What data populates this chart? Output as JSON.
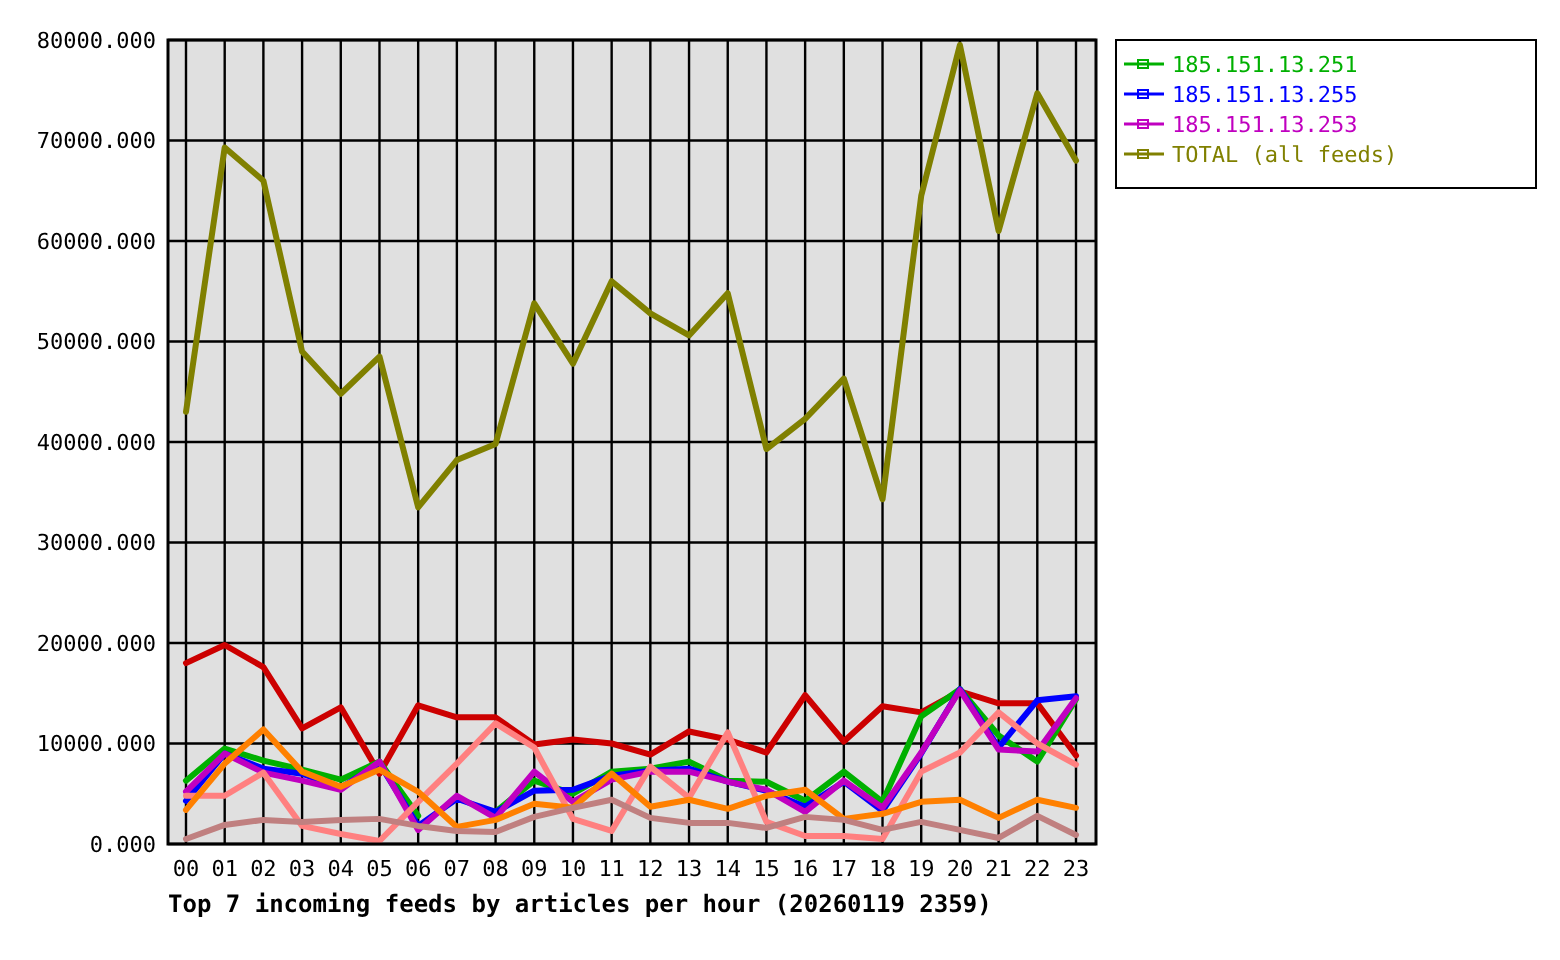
{
  "chart_data": {
    "type": "line",
    "title": "Top 7 incoming feeds by articles per hour (20260119 2359)",
    "categories": [
      "00",
      "01",
      "02",
      "03",
      "04",
      "05",
      "06",
      "07",
      "08",
      "09",
      "10",
      "11",
      "12",
      "13",
      "14",
      "15",
      "16",
      "17",
      "18",
      "19",
      "20",
      "21",
      "22",
      "23"
    ],
    "series": [
      {
        "color": "#cc0000",
        "values": [
          18000,
          19800,
          17600,
          11500,
          13600,
          7000,
          13800,
          12600,
          12600,
          9900,
          10400,
          10000,
          8900,
          11200,
          10400,
          9100,
          14800,
          10200,
          13700,
          13100,
          15200,
          14000,
          14000,
          8800
        ]
      },
      {
        "name": "185.151.13.251",
        "color": "#00b000",
        "values": [
          6300,
          9500,
          8300,
          7400,
          6400,
          8200,
          2800,
          null,
          3200,
          6300,
          5000,
          7200,
          7500,
          8200,
          6300,
          6200,
          4300,
          7200,
          4200,
          12700,
          15400,
          10800,
          8200,
          14400
        ]
      },
      {
        "name": "185.151.13.255",
        "color": "#0000ff",
        "values": [
          4300,
          9000,
          7500,
          7000,
          5600,
          8000,
          1800,
          4500,
          3200,
          5300,
          5400,
          6800,
          7300,
          7500,
          6200,
          5300,
          3700,
          6200,
          3300,
          9000,
          15400,
          9600,
          14300,
          14700
        ]
      },
      {
        "name": "185.151.13.253",
        "color": "#c000c0",
        "values": [
          5200,
          9000,
          7100,
          6300,
          5400,
          8200,
          1400,
          4800,
          2600,
          7200,
          4200,
          6400,
          7200,
          7200,
          6200,
          5400,
          3200,
          6300,
          3600,
          9100,
          15300,
          9400,
          9200,
          14500
        ]
      },
      {
        "color": "#ff8080",
        "values": [
          4800,
          4800,
          7100,
          1800,
          1000,
          300,
          4200,
          8000,
          12000,
          9600,
          2500,
          1300,
          7700,
          4600,
          11100,
          2200,
          800,
          800,
          500,
          7200,
          9100,
          13100,
          10000,
          7900
        ]
      },
      {
        "color": "#ff8000",
        "values": [
          3400,
          8000,
          11400,
          7200,
          5700,
          7400,
          5200,
          1700,
          2400,
          4000,
          3600,
          7000,
          3700,
          4400,
          3500,
          4800,
          5400,
          2500,
          3000,
          4200,
          4400,
          2600,
          4400,
          3600
        ]
      },
      {
        "color": "#c08080",
        "values": [
          500,
          1900,
          2400,
          2200,
          2400,
          2500,
          1800,
          1300,
          1200,
          2700,
          3600,
          4400,
          2600,
          2100,
          2100,
          1600,
          2700,
          2400,
          1400,
          2200,
          1400,
          600,
          2800,
          900
        ]
      },
      {
        "name": "TOTAL (all feeds)",
        "color": "#808000",
        "values": [
          43000,
          69300,
          66000,
          49000,
          44800,
          48500,
          33500,
          38200,
          39800,
          53800,
          47800,
          56000,
          52800,
          50600,
          54800,
          39300,
          42300,
          46300,
          34300,
          64500,
          79500,
          61000,
          74700,
          68000
        ]
      }
    ],
    "ylim": [
      0,
      80000
    ],
    "yticks": [
      {
        "value": 0,
        "label": "0.000"
      },
      {
        "value": 10000,
        "label": "10000.000"
      },
      {
        "value": 20000,
        "label": "20000.000"
      },
      {
        "value": 30000,
        "label": "30000.000"
      },
      {
        "value": 40000,
        "label": "40000.000"
      },
      {
        "value": 50000,
        "label": "50000.000"
      },
      {
        "value": 60000,
        "label": "60000.000"
      },
      {
        "value": 70000,
        "label": "70000.000"
      },
      {
        "value": 80000,
        "label": "80000.000"
      }
    ],
    "grid": true,
    "legend": "right"
  }
}
